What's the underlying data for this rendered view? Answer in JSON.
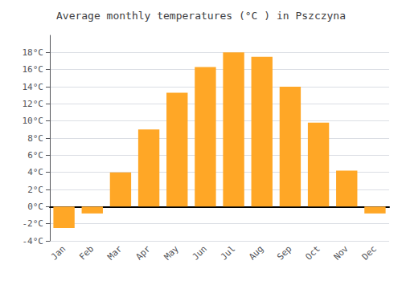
{
  "chart_data": {
    "type": "bar",
    "title": "Average monthly temperatures (°C ) in Pszczyna",
    "categories": [
      "Jan",
      "Feb",
      "Mar",
      "Apr",
      "May",
      "Jun",
      "Jul",
      "Aug",
      "Sep",
      "Oct",
      "Nov",
      "Dec"
    ],
    "values": [
      -2.5,
      -0.8,
      4.0,
      9.0,
      13.3,
      16.3,
      18.0,
      17.5,
      14.0,
      9.8,
      4.2,
      -0.8
    ],
    "color": "#FFA726",
    "ylim": [
      -4,
      20
    ],
    "yticks": [
      {
        "value": -4,
        "label": "-4°C"
      },
      {
        "value": -2,
        "label": "-2°C"
      },
      {
        "value": 0,
        "label": "0°C"
      },
      {
        "value": 2,
        "label": "2°C"
      },
      {
        "value": 4,
        "label": "4°C"
      },
      {
        "value": 6,
        "label": "6°C"
      },
      {
        "value": 8,
        "label": "8°C"
      },
      {
        "value": 10,
        "label": "10°C"
      },
      {
        "value": 12,
        "label": "12°C"
      },
      {
        "value": 14,
        "label": "14°C"
      },
      {
        "value": 16,
        "label": "16°C"
      },
      {
        "value": 18,
        "label": "18°C"
      }
    ],
    "grid": true
  }
}
